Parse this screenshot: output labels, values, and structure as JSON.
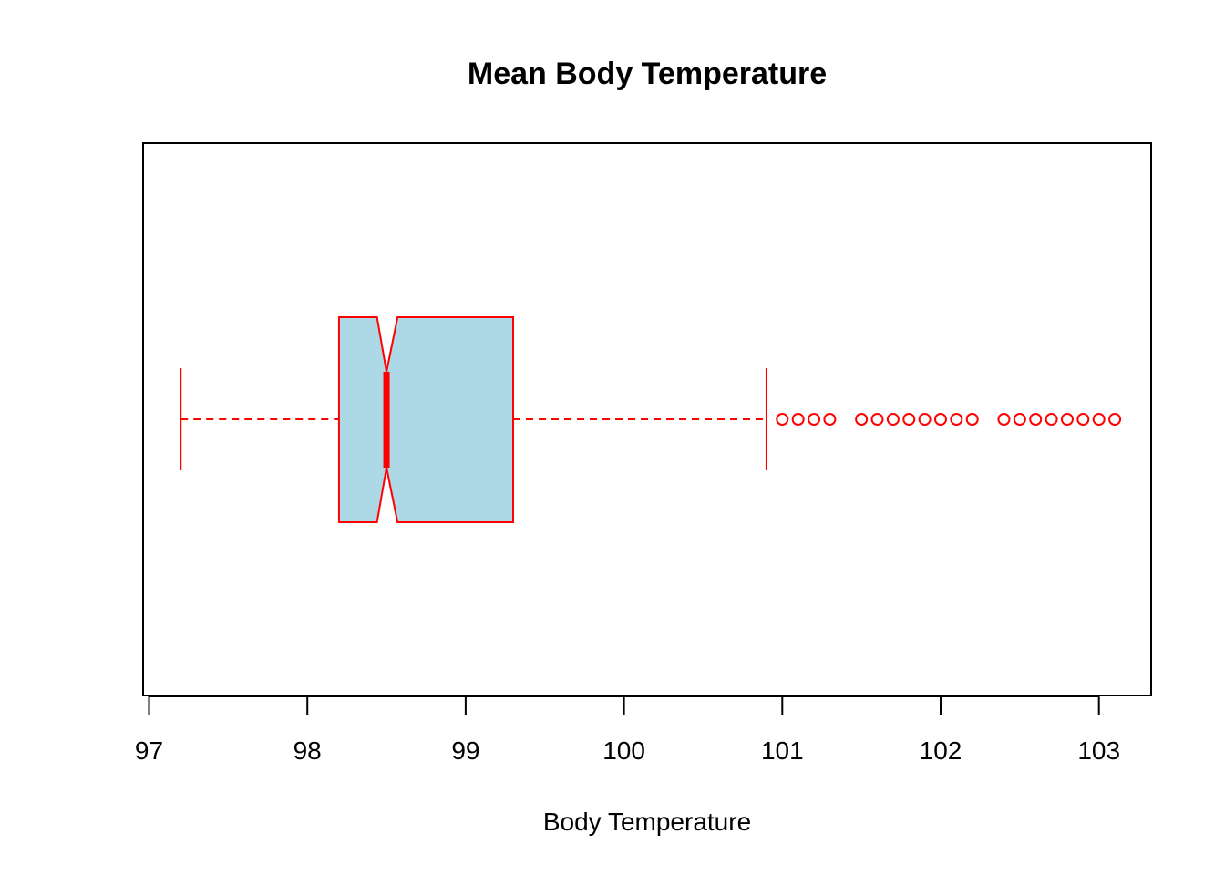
{
  "chart_data": {
    "type": "boxplot",
    "orientation": "horizontal",
    "notched": true,
    "title": "Mean Body Temperature",
    "xlabel": "Body Temperature",
    "ylabel": "",
    "xlim": [
      97,
      103.3
    ],
    "x_ticks": [
      97,
      98,
      99,
      100,
      101,
      102,
      103
    ],
    "box": {
      "whisker_low": 97.2,
      "q1": 98.2,
      "median": 98.5,
      "q3": 99.3,
      "whisker_high": 100.9,
      "notch_low": 98.44,
      "notch_high": 98.57
    },
    "outliers": [
      101.0,
      101.1,
      101.2,
      101.3,
      101.5,
      101.6,
      101.7,
      101.8,
      101.9,
      102.0,
      102.1,
      102.2,
      102.4,
      102.5,
      102.6,
      102.7,
      102.8,
      102.9,
      103.0,
      103.1
    ],
    "colors": {
      "box_fill": "#add8e6",
      "line": "#ff0000",
      "axis": "#000000"
    },
    "grid": false,
    "legend": "none"
  }
}
